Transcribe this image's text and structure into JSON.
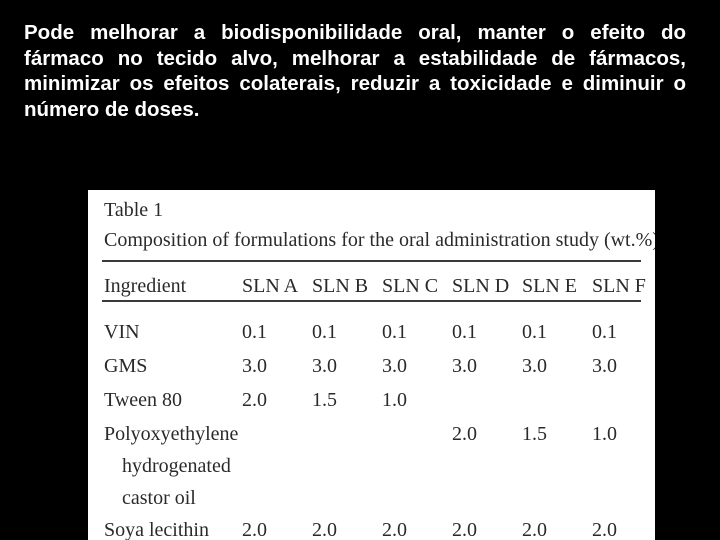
{
  "slide": {
    "text": "Pode melhorar a biodisponibilidade oral, manter o efeito do fármaco no tecido alvo, melhorar a estabilidade de fármacos, minimizar os efeitos colaterais, reduzir a toxicidade e diminuir o número de doses."
  },
  "table": {
    "title": "Table 1",
    "subtitle": "Composition of formulations for the oral administration study (wt.%)",
    "headers": [
      "Ingredient",
      "SLN A",
      "SLN B",
      "SLN C",
      "SLN D",
      "SLN E",
      "SLN F"
    ],
    "rows": [
      {
        "ingredient": [
          "VIN"
        ],
        "values": [
          "0.1",
          "0.1",
          "0.1",
          "0.1",
          "0.1",
          "0.1"
        ]
      },
      {
        "ingredient": [
          "GMS"
        ],
        "values": [
          "3.0",
          "3.0",
          "3.0",
          "3.0",
          "3.0",
          "3.0"
        ]
      },
      {
        "ingredient": [
          "Tween 80"
        ],
        "values": [
          "2.0",
          "1.5",
          "1.0",
          "",
          "",
          ""
        ]
      },
      {
        "ingredient": [
          "Polyoxyethylene",
          "hydrogenated",
          "castor oil"
        ],
        "values": [
          "",
          "",
          "",
          "2.0",
          "1.5",
          "1.0"
        ]
      },
      {
        "ingredient": [
          "Soya lecithin"
        ],
        "values": [
          "2.0",
          "2.0",
          "2.0",
          "2.0",
          "2.0",
          "2.0"
        ]
      }
    ]
  }
}
